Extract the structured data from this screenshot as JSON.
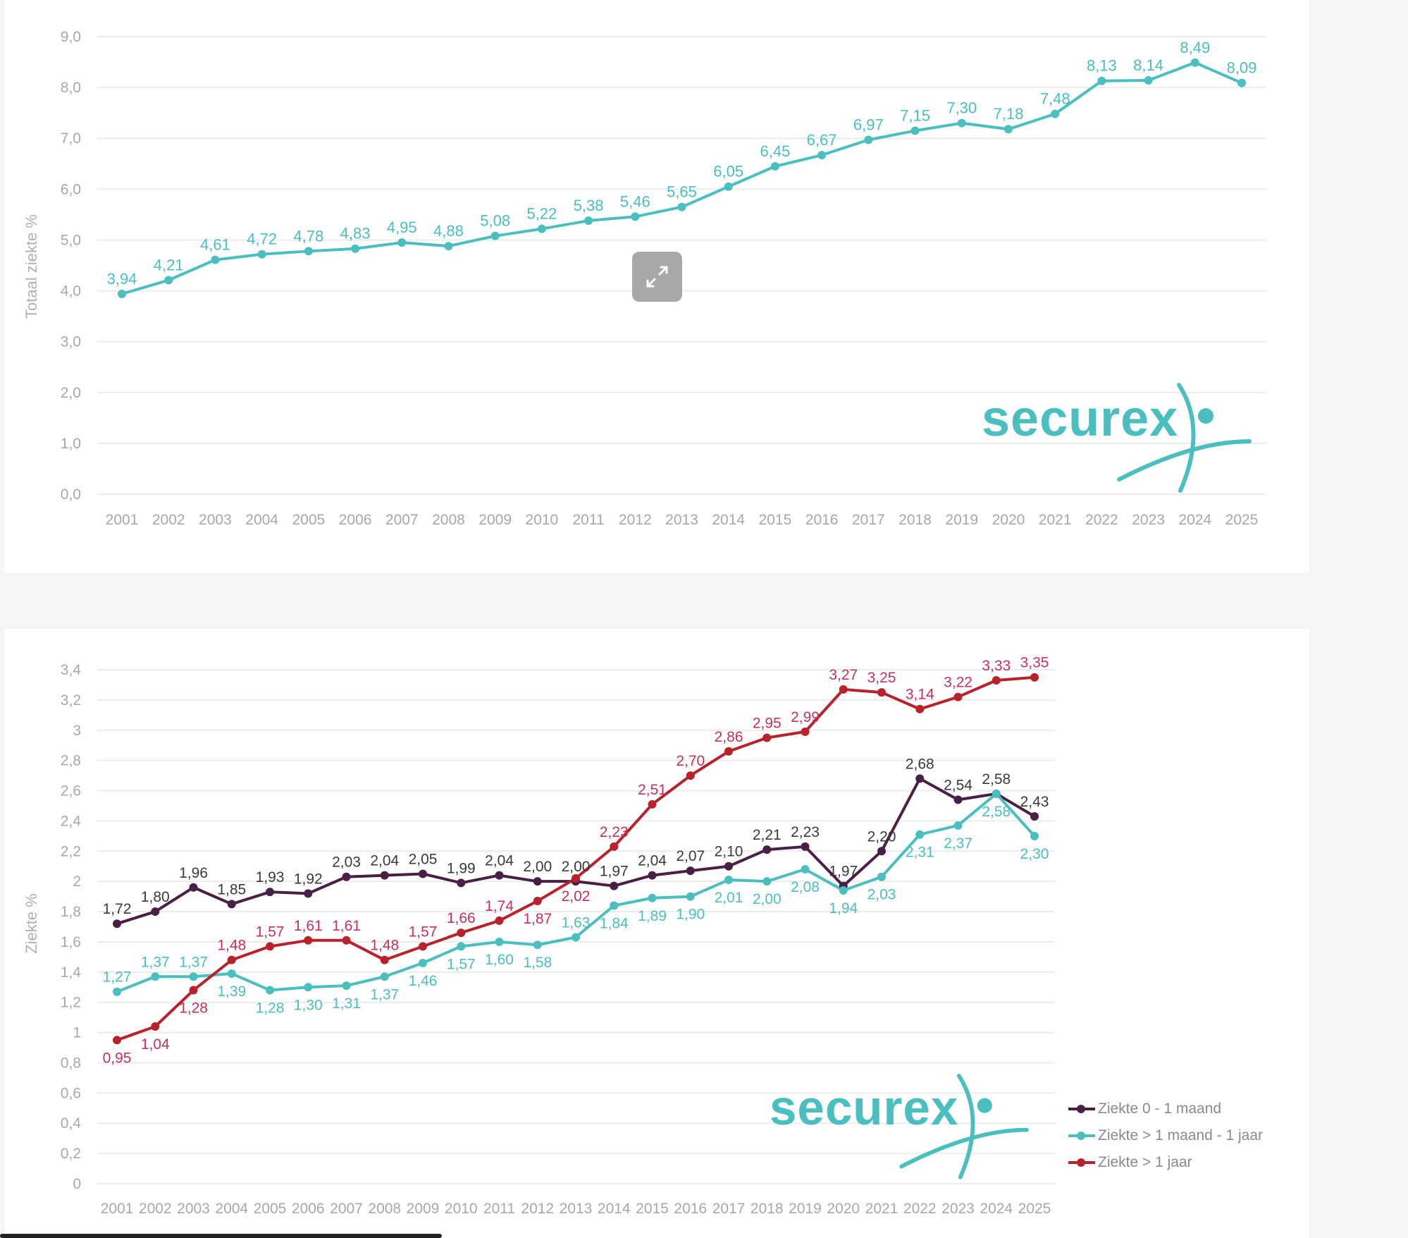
{
  "colors": {
    "teal": "#4bbfc0",
    "dark": "#4a1f45",
    "red": "#b8222b",
    "red_label": "#c6325a",
    "dark_label": "#3a3a3a",
    "logo": "#4bbfc0"
  },
  "logo_text": "securex",
  "chart_data": [
    {
      "type": "line",
      "title": "",
      "xlabel": "",
      "ylabel": "Totaal ziekte %",
      "ylim": [
        0,
        9
      ],
      "yticks": [
        "0,0",
        "1,0",
        "2,0",
        "3,0",
        "4,0",
        "5,0",
        "6,0",
        "7,0",
        "8,0",
        "9,0"
      ],
      "categories": [
        "2001",
        "2002",
        "2003",
        "2004",
        "2005",
        "2006",
        "2007",
        "2008",
        "2009",
        "2010",
        "2011",
        "2012",
        "2013",
        "2014",
        "2015",
        "2016",
        "2017",
        "2018",
        "2019",
        "2020",
        "2021",
        "2022",
        "2023",
        "2024",
        "2025"
      ],
      "grid": true,
      "series": [
        {
          "name": "Totaal ziekte",
          "values": [
            3.94,
            4.21,
            4.61,
            4.72,
            4.78,
            4.83,
            4.95,
            4.88,
            5.08,
            5.22,
            5.38,
            5.46,
            5.65,
            6.05,
            6.45,
            6.67,
            6.97,
            7.15,
            7.3,
            7.18,
            7.48,
            8.13,
            8.14,
            8.49,
            8.09
          ],
          "labels": [
            "3,94",
            "4,21",
            "4,61",
            "4,72",
            "4,78",
            "4,83",
            "4,95",
            "4,88",
            "5,08",
            "5,22",
            "5,38",
            "5,46",
            "5,65",
            "6,05",
            "6,45",
            "6,67",
            "6,97",
            "7,15",
            "7,30",
            "7,18",
            "7,48",
            "8,13",
            "8,14",
            "8,49",
            "8,09"
          ]
        }
      ]
    },
    {
      "type": "line",
      "title": "",
      "xlabel": "",
      "ylabel": "Ziekte %",
      "ylim": [
        0,
        3.4
      ],
      "yticks": [
        "0",
        "0,2",
        "0,4",
        "0,6",
        "0,8",
        "1",
        "1,2",
        "1,4",
        "1,6",
        "1,8",
        "2",
        "2,2",
        "2,4",
        "2,6",
        "2,8",
        "3",
        "3,2",
        "3,4"
      ],
      "categories": [
        "2001",
        "2002",
        "2003",
        "2004",
        "2005",
        "2006",
        "2007",
        "2008",
        "2009",
        "2010",
        "2011",
        "2012",
        "2013",
        "2014",
        "2015",
        "2016",
        "2017",
        "2018",
        "2019",
        "2020",
        "2021",
        "2022",
        "2023",
        "2024",
        "2025"
      ],
      "grid": true,
      "legend_position": "bottom-right",
      "series": [
        {
          "name": "Ziekte 0 - 1 maand",
          "values": [
            1.72,
            1.8,
            1.96,
            1.85,
            1.93,
            1.92,
            2.03,
            2.04,
            2.05,
            1.99,
            2.04,
            2.0,
            2.0,
            1.97,
            2.04,
            2.07,
            2.1,
            2.21,
            2.23,
            1.97,
            2.2,
            2.68,
            2.54,
            2.58,
            2.43
          ],
          "labels": [
            "1,72",
            "1,80",
            "1,96",
            "1,85",
            "1,93",
            "1,92",
            "2,03",
            "2,04",
            "2,05",
            "1,99",
            "2,04",
            "2,00",
            "2,00",
            "1,97",
            "2,04",
            "2,07",
            "2,10",
            "2,21",
            "2,23",
            "1,97",
            "2,20",
            "2,68",
            "2,54",
            "2,58",
            "2,43"
          ]
        },
        {
          "name": "Ziekte > 1 maand - 1 jaar",
          "values": [
            1.27,
            1.37,
            1.37,
            1.39,
            1.28,
            1.3,
            1.31,
            1.37,
            1.46,
            1.57,
            1.6,
            1.58,
            1.63,
            1.84,
            1.89,
            1.9,
            2.01,
            2.0,
            2.08,
            1.94,
            2.03,
            2.31,
            2.37,
            2.58,
            2.3
          ],
          "labels": [
            "1,27",
            "1,37",
            "1,37",
            "1,39",
            "1,28",
            "1,30",
            "1,31",
            "1,37",
            "1,46",
            "1,57",
            "1,60",
            "1,58",
            "1,63",
            "1,84",
            "1,89",
            "1,90",
            "2,01",
            "2,00",
            "2,08",
            "1,94",
            "2,03",
            "2,31",
            "2,37",
            "2,58",
            "2,30"
          ]
        },
        {
          "name": "Ziekte > 1 jaar",
          "values": [
            0.95,
            1.04,
            1.28,
            1.48,
            1.57,
            1.61,
            1.61,
            1.48,
            1.57,
            1.66,
            1.74,
            1.87,
            2.02,
            2.23,
            2.51,
            2.7,
            2.86,
            2.95,
            2.99,
            3.27,
            3.25,
            3.14,
            3.22,
            3.33,
            3.35
          ],
          "labels": [
            "0,95",
            "1,04",
            "1,28",
            "1,48",
            "1,57",
            "1,61",
            "1,61",
            "1,48",
            "1,57",
            "1,66",
            "1,74",
            "1,87",
            "2,02",
            "2,23",
            "2,51",
            "2,70",
            "2,86",
            "2,95",
            "2,99",
            "3,27",
            "3,25",
            "3,14",
            "3,22",
            "3,33",
            "3,35"
          ]
        }
      ]
    }
  ]
}
